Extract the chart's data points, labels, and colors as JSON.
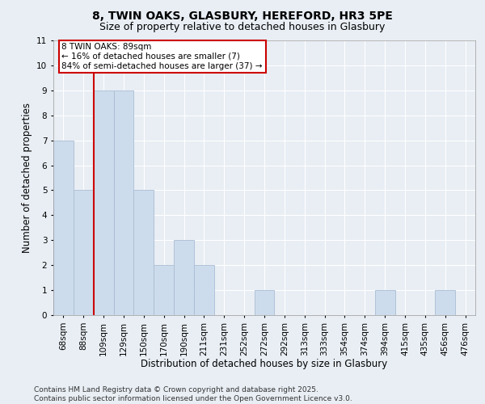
{
  "title_line1": "8, TWIN OAKS, GLASBURY, HEREFORD, HR3 5PE",
  "title_line2": "Size of property relative to detached houses in Glasbury",
  "xlabel": "Distribution of detached houses by size in Glasbury",
  "ylabel": "Number of detached properties",
  "categories": [
    "68sqm",
    "88sqm",
    "109sqm",
    "129sqm",
    "150sqm",
    "170sqm",
    "190sqm",
    "211sqm",
    "231sqm",
    "252sqm",
    "272sqm",
    "292sqm",
    "313sqm",
    "333sqm",
    "354sqm",
    "374sqm",
    "394sqm",
    "415sqm",
    "435sqm",
    "456sqm",
    "476sqm"
  ],
  "values": [
    7,
    5,
    9,
    9,
    5,
    2,
    3,
    2,
    0,
    0,
    1,
    0,
    0,
    0,
    0,
    0,
    1,
    0,
    0,
    1,
    0
  ],
  "bar_color": "#cddcec",
  "bar_edgecolor": "#aabdd4",
  "vline_x_idx": 1.5,
  "annotation_text": "8 TWIN OAKS: 89sqm\n← 16% of detached houses are smaller (7)\n84% of semi-detached houses are larger (37) →",
  "annotation_box_facecolor": "#ffffff",
  "annotation_box_edgecolor": "#cc0000",
  "vline_color": "#cc0000",
  "ylim": [
    0,
    11
  ],
  "yticks": [
    0,
    1,
    2,
    3,
    4,
    5,
    6,
    7,
    8,
    9,
    10,
    11
  ],
  "background_color": "#e8eef4",
  "grid_color": "#ffffff",
  "footnote": "Contains HM Land Registry data © Crown copyright and database right 2025.\nContains public sector information licensed under the Open Government Licence v3.0.",
  "title_fontsize": 10,
  "subtitle_fontsize": 9,
  "axis_label_fontsize": 8.5,
  "tick_fontsize": 7.5,
  "annotation_fontsize": 7.5,
  "footnote_fontsize": 6.5
}
